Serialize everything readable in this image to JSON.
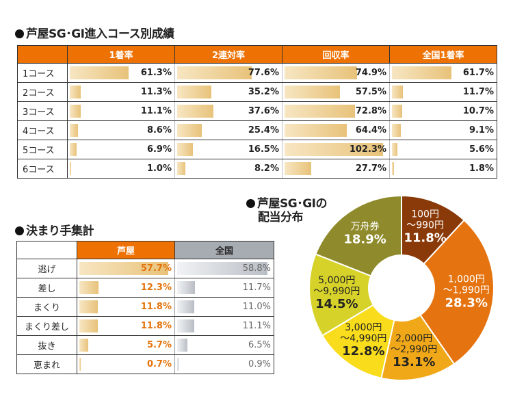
{
  "section1": {
    "title": "芦屋SG･GI進入コース別成績",
    "columns": [
      "1着率",
      "2連対率",
      "回収率",
      "全国1着率"
    ],
    "rows": [
      {
        "label": "1コース",
        "values": [
          "61.3%",
          "77.6%",
          "74.9%",
          "61.7%"
        ],
        "nums": [
          61.3,
          77.6,
          74.9,
          61.7
        ]
      },
      {
        "label": "2コース",
        "values": [
          "11.3%",
          "35.2%",
          "57.5%",
          "11.7%"
        ],
        "nums": [
          11.3,
          35.2,
          57.5,
          11.7
        ]
      },
      {
        "label": "3コース",
        "values": [
          "11.1%",
          "37.6%",
          "72.8%",
          "10.7%"
        ],
        "nums": [
          11.1,
          37.6,
          72.8,
          10.7
        ]
      },
      {
        "label": "4コース",
        "values": [
          "8.6%",
          "25.4%",
          "64.4%",
          "9.1%"
        ],
        "nums": [
          8.6,
          25.4,
          64.4,
          9.1
        ]
      },
      {
        "label": "5コース",
        "values": [
          "6.9%",
          "16.5%",
          "102.3%",
          "5.6%"
        ],
        "nums": [
          6.9,
          16.5,
          102.3,
          5.6
        ]
      },
      {
        "label": "6コース",
        "values": [
          "1.0%",
          "8.2%",
          "27.7%",
          "1.8%"
        ],
        "nums": [
          1.0,
          8.2,
          27.7,
          1.8
        ]
      }
    ]
  },
  "section2": {
    "title": "決まり手集計",
    "columns": [
      "芦屋",
      "全国"
    ],
    "rows": [
      {
        "label": "逃げ",
        "values": [
          "57.7%",
          "58.8%"
        ],
        "nums": [
          57.7,
          58.8
        ]
      },
      {
        "label": "差し",
        "values": [
          "12.3%",
          "11.7%"
        ],
        "nums": [
          12.3,
          11.7
        ]
      },
      {
        "label": "まくり",
        "values": [
          "11.8%",
          "11.0%"
        ],
        "nums": [
          11.8,
          11.0
        ]
      },
      {
        "label": "まくり差し",
        "values": [
          "11.8%",
          "11.1%"
        ],
        "nums": [
          11.8,
          11.1
        ]
      },
      {
        "label": "抜き",
        "values": [
          "5.7%",
          "6.5%"
        ],
        "nums": [
          5.7,
          6.5
        ]
      },
      {
        "label": "恵まれ",
        "values": [
          "0.7%",
          "0.9%"
        ],
        "nums": [
          0.7,
          0.9
        ]
      }
    ]
  },
  "section3": {
    "title_line1": "芦屋SG･GIの",
    "title_line2": "配当分布"
  },
  "colors": {
    "header_orange": "#ee7203",
    "header_gray": "#a7acb3",
    "slice_100_990": "#8a3a08",
    "slice_1000_1990": "#e5730f",
    "slice_2000_2990": "#f0a818",
    "slice_3000_4990": "#f9dc1c",
    "slice_5000_9990": "#d7d22a",
    "slice_man": "#8f8b2c"
  },
  "chart_data": [
    {
      "type": "table",
      "title": "芦屋SG･GI進入コース別成績",
      "categories": [
        "1コース",
        "2コース",
        "3コース",
        "4コース",
        "5コース",
        "6コース"
      ],
      "series": [
        {
          "name": "1着率",
          "values": [
            61.3,
            11.3,
            11.1,
            8.6,
            6.9,
            1.0
          ]
        },
        {
          "name": "2連対率",
          "values": [
            77.6,
            35.2,
            37.6,
            25.4,
            16.5,
            8.2
          ]
        },
        {
          "name": "回収率",
          "values": [
            74.9,
            57.5,
            72.8,
            64.4,
            102.3,
            27.7
          ]
        },
        {
          "name": "全国1着率",
          "values": [
            61.7,
            11.7,
            10.7,
            9.1,
            5.6,
            1.8
          ]
        }
      ]
    },
    {
      "type": "table",
      "title": "決まり手集計",
      "categories": [
        "逃げ",
        "差し",
        "まくり",
        "まくり差し",
        "抜き",
        "恵まれ"
      ],
      "series": [
        {
          "name": "芦屋",
          "values": [
            57.7,
            12.3,
            11.8,
            11.8,
            5.7,
            0.7
          ]
        },
        {
          "name": "全国",
          "values": [
            58.8,
            11.7,
            11.0,
            11.1,
            6.5,
            0.9
          ]
        }
      ]
    },
    {
      "type": "pie",
      "title": "芦屋SG･GIの配当分布",
      "slices": [
        {
          "lines": [
            "100円",
            "～990円"
          ],
          "value_label": "11.8%",
          "value": 11.8,
          "color": "#8a3a08",
          "text_color": "#ffffff"
        },
        {
          "lines": [
            "1,000円",
            "～1,990円"
          ],
          "value_label": "28.3%",
          "value": 28.3,
          "color": "#e5730f",
          "text_color": "#ffffff"
        },
        {
          "lines": [
            "2,000円",
            "～2,990円"
          ],
          "value_label": "13.1%",
          "value": 13.1,
          "color": "#f0a818",
          "text_color": "#222222"
        },
        {
          "lines": [
            "3,000円",
            "～4,990円"
          ],
          "value_label": "12.8%",
          "value": 12.8,
          "color": "#f9dc1c",
          "text_color": "#222222"
        },
        {
          "lines": [
            "5,000円",
            "～9,990円"
          ],
          "value_label": "14.5%",
          "value": 14.5,
          "color": "#d7d22a",
          "text_color": "#222222"
        },
        {
          "lines": [
            "万舟券"
          ],
          "value_label": "18.9%",
          "value": 18.9,
          "color": "#8f8b2c",
          "text_color": "#ffffff"
        }
      ]
    }
  ]
}
